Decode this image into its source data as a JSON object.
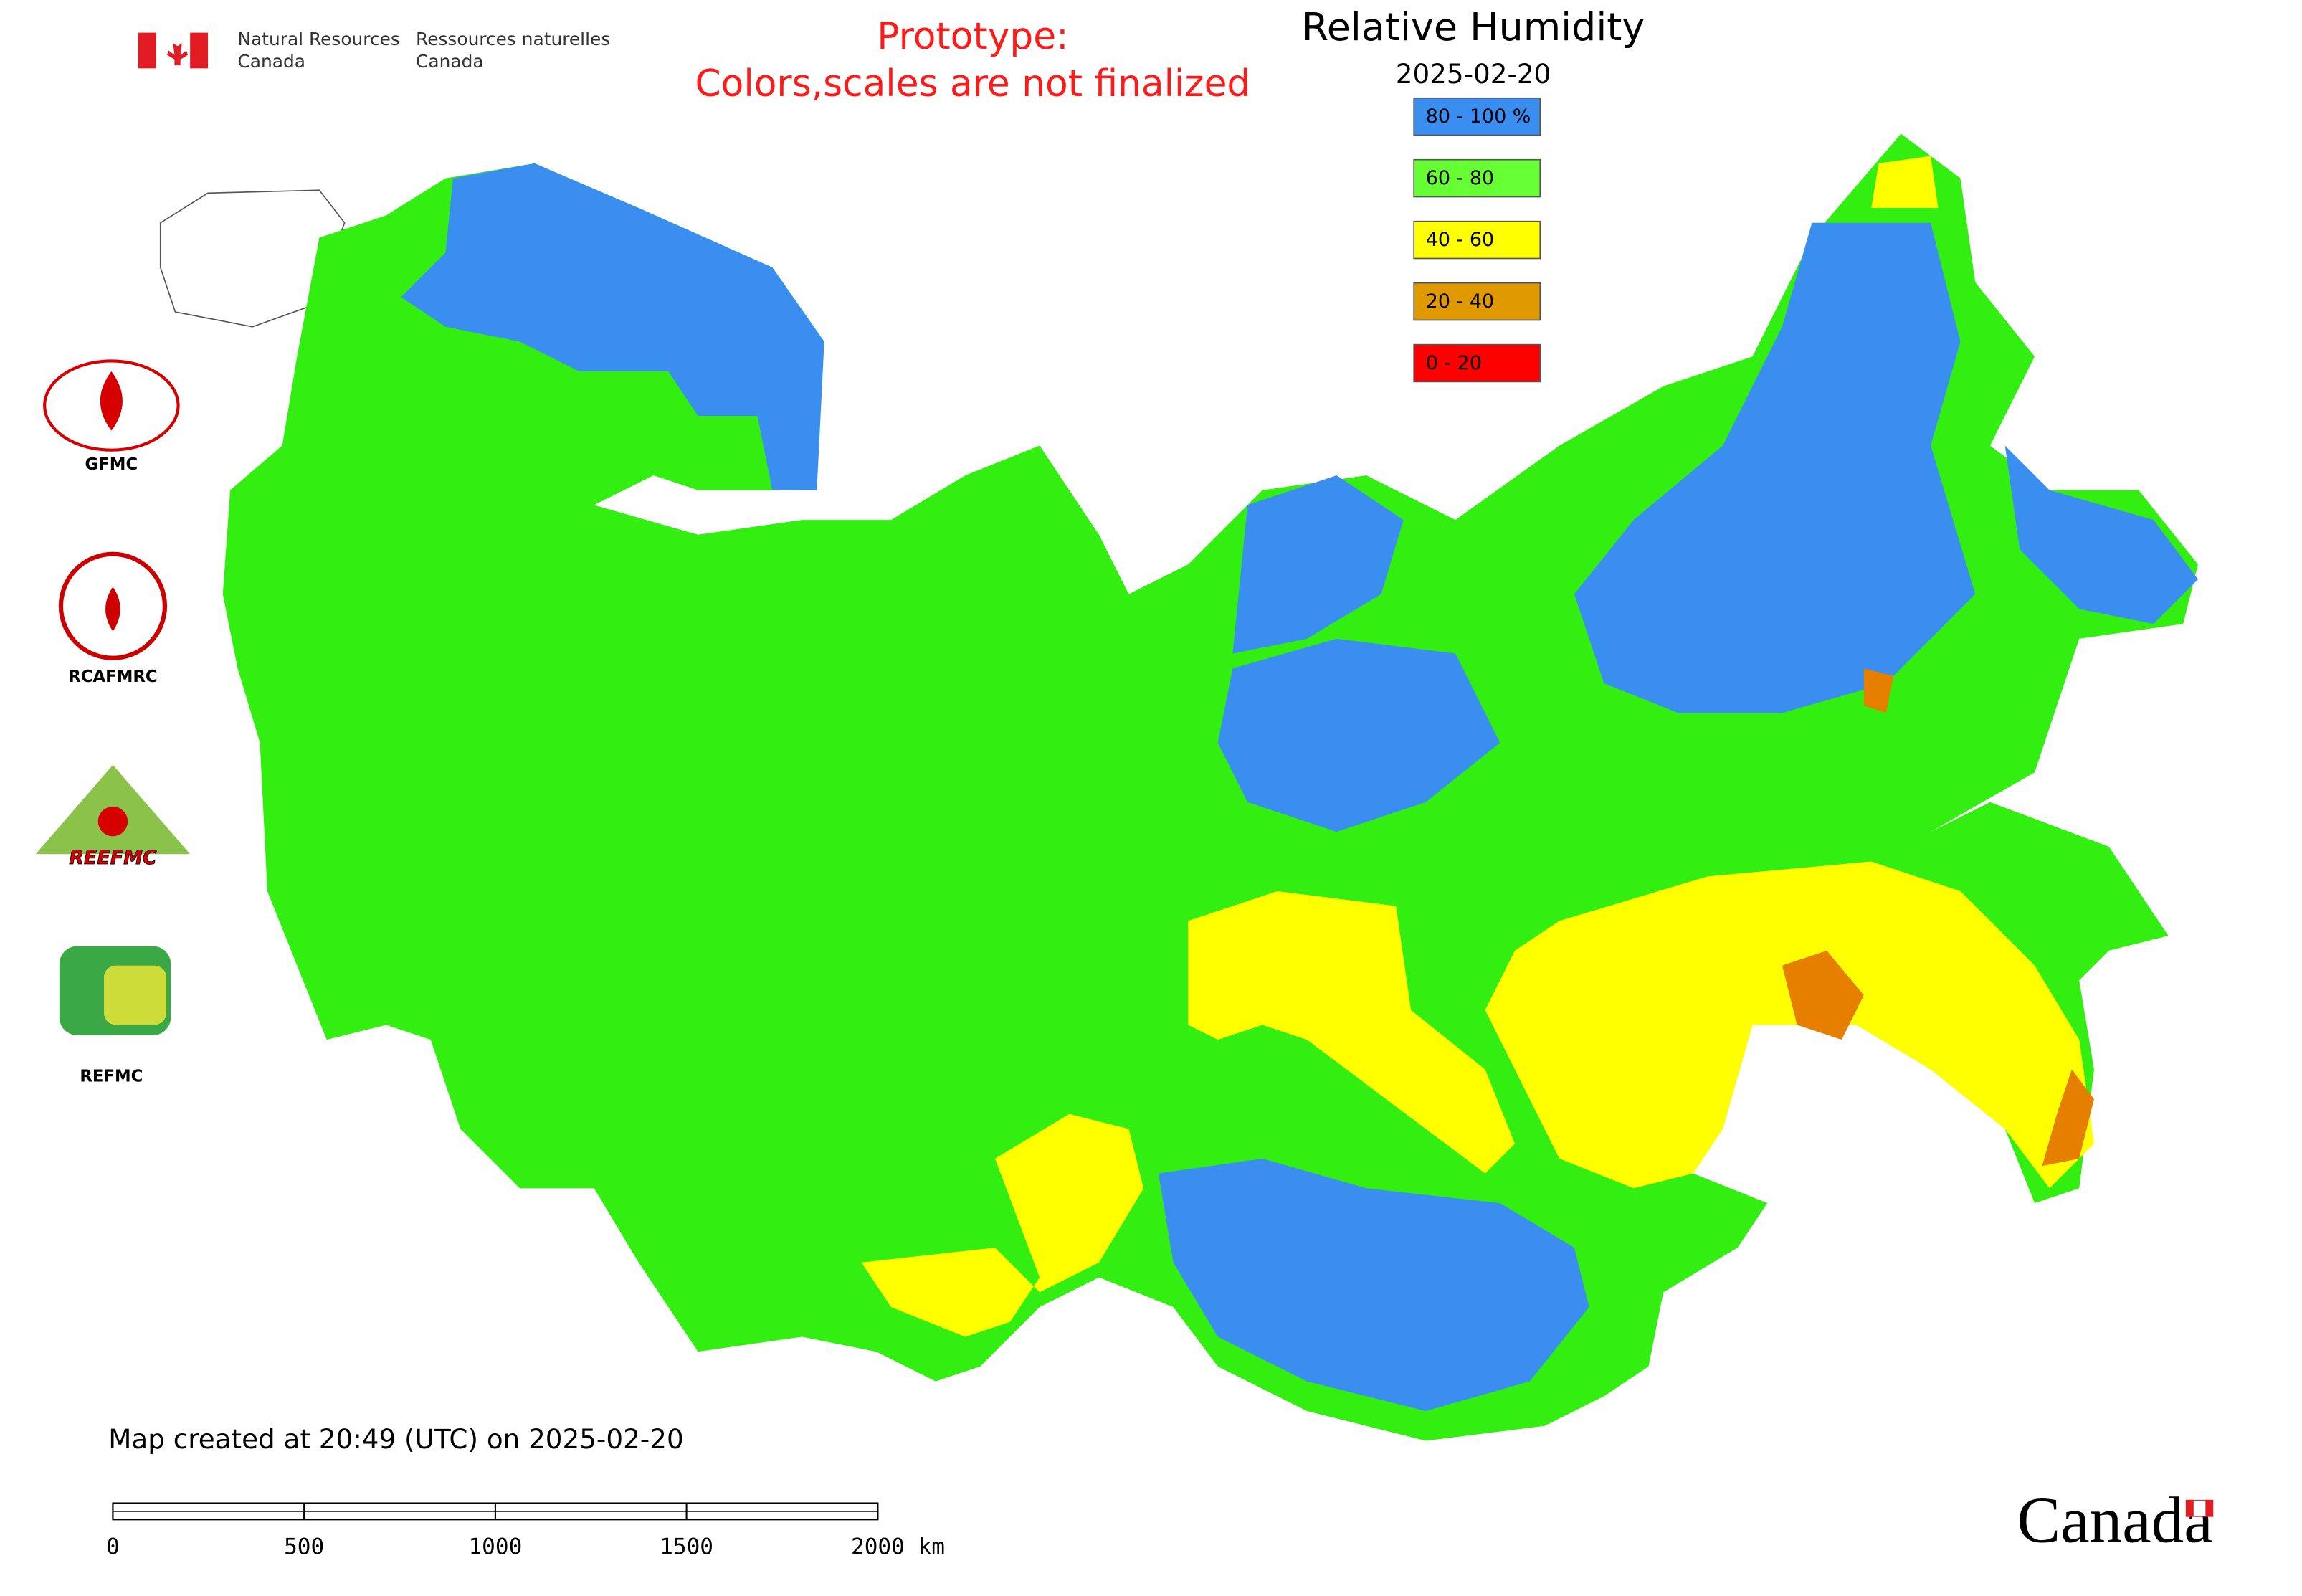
{
  "header": {
    "department_en": [
      "Natural Resources",
      "Canada"
    ],
    "department_fr": [
      "Ressources naturelles",
      "Canada"
    ]
  },
  "notice": [
    "Prototype:",
    "Colors,scales are not finalized"
  ],
  "title": "Relative Humidity",
  "date": "2025-02-20",
  "legend": [
    {
      "label": "80 - 100 %",
      "color": "#3a8ef0"
    },
    {
      "label": "60 - 80",
      "color": "#66ff33"
    },
    {
      "label": "40 - 60",
      "color": "#ffff00"
    },
    {
      "label": "20 - 40",
      "color": "#e09a00"
    },
    {
      "label": "0 - 20",
      "color": "#ff0000"
    }
  ],
  "logos": [
    "GFMC",
    "RCAFMRC",
    "REEFMC",
    "REFMC"
  ],
  "map_created": "Map created at 20:49 (UTC) on 2025-02-20",
  "scale_bar": [
    "0",
    "500",
    "1000",
    "1500",
    "2000 km"
  ],
  "wordmark": "Canada"
}
